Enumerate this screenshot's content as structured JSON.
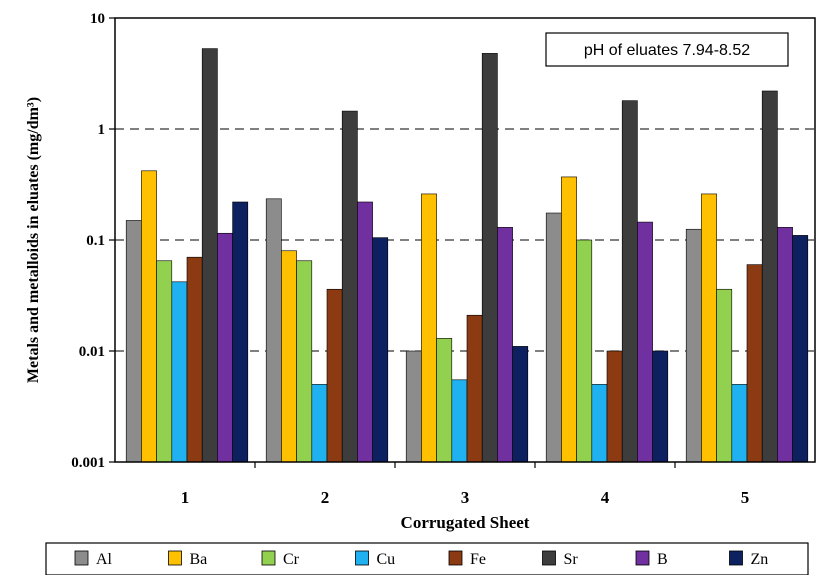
{
  "chart_data": {
    "type": "bar",
    "xlabel": "Corrugated Sheet",
    "ylabel": "Metals and metalloids in eluates (mg/dm³)",
    "y_scale": "log",
    "ylim": [
      0.001,
      10
    ],
    "y_ticks": [
      "10",
      "1",
      "0.1",
      "0.01",
      "0.001"
    ],
    "y_tick_values": [
      10,
      1,
      0.1,
      0.01,
      0.001
    ],
    "gridlines": "dashed at 1, 0.1 and 0.01",
    "annotation": "pH of eluates 7.94-8.52",
    "legend_position": "bottom",
    "categories": [
      "1",
      "2",
      "3",
      "4",
      "5"
    ],
    "series": [
      {
        "name": "Al",
        "color": "#8c8c8c",
        "values": [
          0.15,
          0.235,
          0.01,
          0.175,
          0.125
        ]
      },
      {
        "name": "Ba",
        "color": "#ffc000",
        "values": [
          0.42,
          0.08,
          0.26,
          0.37,
          0.26
        ]
      },
      {
        "name": "Cr",
        "color": "#92d050",
        "values": [
          0.065,
          0.065,
          0.013,
          0.1,
          0.036
        ]
      },
      {
        "name": "Cu",
        "color": "#1fb1f0",
        "values": [
          0.042,
          0.005,
          0.0055,
          0.005,
          0.005
        ]
      },
      {
        "name": "Fe",
        "color": "#8b3a12",
        "values": [
          0.07,
          0.036,
          0.021,
          0.01,
          0.06
        ]
      },
      {
        "name": "Sr",
        "color": "#3d3d3d",
        "values": [
          5.3,
          1.45,
          4.8,
          1.8,
          2.2
        ]
      },
      {
        "name": "B",
        "color": "#7030a0",
        "values": [
          0.115,
          0.22,
          0.13,
          0.145,
          0.13
        ]
      },
      {
        "name": "Zn",
        "color": "#0d2060",
        "values": [
          0.22,
          0.105,
          0.011,
          0.01,
          0.11
        ]
      }
    ]
  }
}
